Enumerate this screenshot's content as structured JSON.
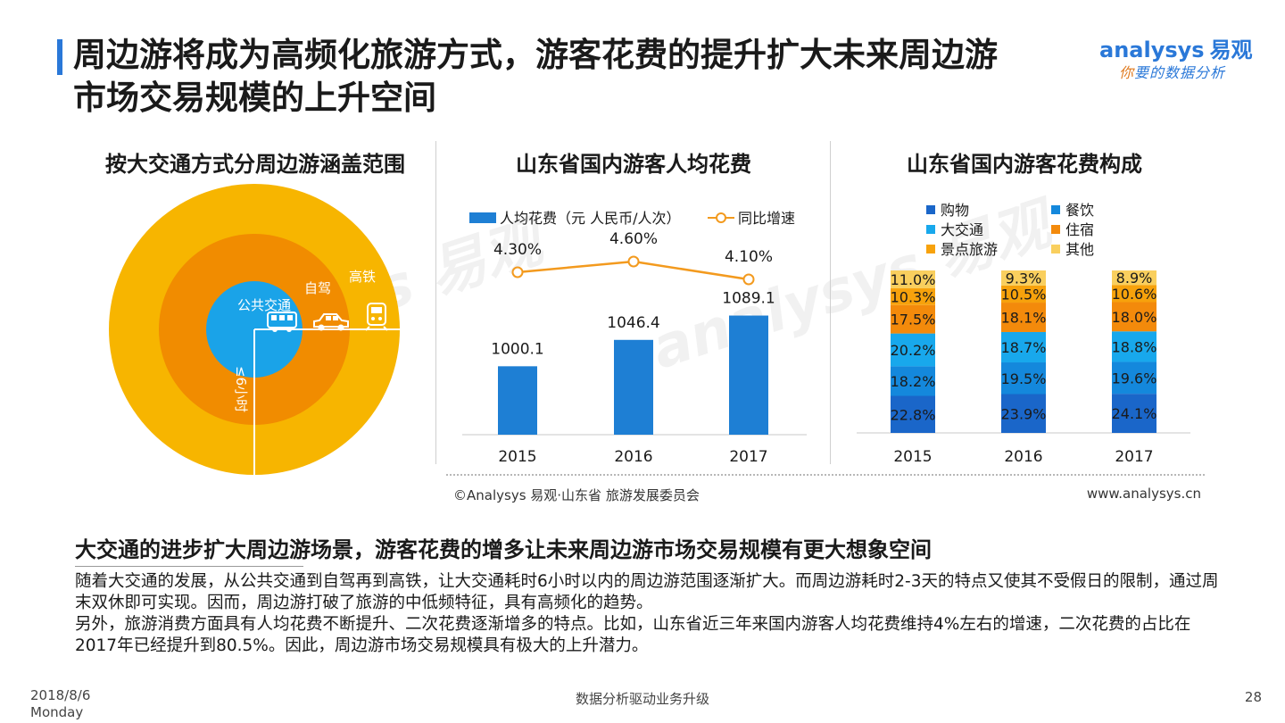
{
  "header": {
    "title_line1": "周边游将成为高频化旅游方式，游客花费的提升扩大未来周边游",
    "title_line2": "市场交易规模的上升空间"
  },
  "logo": {
    "brand": "analysys",
    "brand_cn": "易观",
    "tagline_prefix": "你",
    "tagline_rest": "要的数据分析"
  },
  "panel1": {
    "title": "按大交通方式分周边游涵盖范围",
    "labels": {
      "public_transport": "公共交通",
      "self_drive": "自驾",
      "high_speed_rail": "高铁",
      "time_limit": "≤6小时"
    },
    "icons": [
      "bus-icon",
      "car-icon",
      "train-icon"
    ],
    "colors": {
      "outer": "#f7b500",
      "middle": "#f18c00",
      "inner": "#1aa3e8"
    }
  },
  "chart_data": [
    {
      "type": "bar",
      "title": "山东省国内游客人均花费",
      "categories": [
        "2015",
        "2016",
        "2017"
      ],
      "series": [
        {
          "name": "人均花费（元 人民币/人次）",
          "values": [
            1000.1,
            1046.4,
            1089.1
          ],
          "labels": [
            "1000.1",
            "1046.4",
            "1089.1"
          ],
          "color": "#1e7fd4"
        },
        {
          "name": "同比增速",
          "values": [
            4.3,
            4.6,
            4.1
          ],
          "labels": [
            "4.30%",
            "4.60%",
            "4.10%"
          ],
          "color": "#f39a1e"
        }
      ]
    },
    {
      "type": "bar",
      "title": "山东省国内游客花费构成",
      "categories": [
        "2015",
        "2016",
        "2017"
      ],
      "stacked": true,
      "series": [
        {
          "name": "购物",
          "values": [
            22.8,
            23.9,
            24.1
          ],
          "labels": [
            "22.8%",
            "23.9%",
            "24.1%"
          ],
          "color": "#1a66c9"
        },
        {
          "name": "餐饮",
          "values": [
            18.2,
            19.5,
            19.6
          ],
          "labels": [
            "18.2%",
            "19.5%",
            "19.6%"
          ],
          "color": "#1488dc"
        },
        {
          "name": "大交通",
          "values": [
            20.2,
            18.7,
            18.8
          ],
          "labels": [
            "20.2%",
            "18.7%",
            "18.8%"
          ],
          "color": "#18a8ec"
        },
        {
          "name": "住宿",
          "values": [
            17.5,
            18.1,
            18.0
          ],
          "labels": [
            "17.5%",
            "18.1%",
            "18.0%"
          ],
          "color": "#f38a0b"
        },
        {
          "name": "景点旅游",
          "values": [
            10.3,
            10.5,
            10.6
          ],
          "labels": [
            "10.3%",
            "10.5%",
            "10.6%"
          ],
          "color": "#f7a20c"
        },
        {
          "name": "其他",
          "values": [
            11.0,
            9.3,
            8.9
          ],
          "labels": [
            "11.0%",
            "9.3%",
            "8.9%"
          ],
          "color": "#f9cf5e"
        }
      ]
    }
  ],
  "source": {
    "left": "©Analysys 易观·山东省 旅游发展委员会",
    "right": "www.analysys.cn"
  },
  "summary": {
    "title": "大交通的进步扩大周边游场景，游客花费的增多让未来周边游市场交易规模有更大想象空间",
    "paragraph1": "随着大交通的发展，从公共交通到自驾再到高铁，让大交通耗时6小时以内的周边游范围逐渐扩大。而周边游耗时2-3天的特点又使其不受假日的限制，通过周末双休即可实现。因而，周边游打破了旅游的中低频特征，具有高频化的趋势。",
    "paragraph2": "另外，旅游消费方面具有人均花费不断提升、二次花费逐渐增多的特点。比如，山东省近三年来国内游客人均花费维持4%左右的增速，二次花费的占比在2017年已经提升到80.5%。因此，周边游市场交易规模具有极大的上升潜力。"
  },
  "footer": {
    "date": "2018/8/6",
    "weekday": "Monday",
    "center": "数据分析驱动业务升级",
    "page": "28"
  }
}
